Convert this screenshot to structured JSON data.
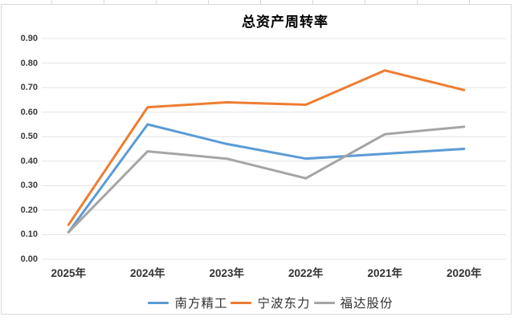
{
  "window": {
    "background": "#ffffff"
  },
  "chart_data": {
    "type": "line",
    "title": "总资产周转率",
    "categories": [
      "2025年",
      "2024年",
      "2023年",
      "2022年",
      "2021年",
      "2020年"
    ],
    "series": [
      {
        "name": "南方精工",
        "color": "#5B9BD5",
        "values": [
          0.11,
          0.55,
          0.47,
          0.41,
          0.43,
          0.45
        ]
      },
      {
        "name": "宁波东力",
        "color": "#ED7D31",
        "values": [
          0.14,
          0.62,
          0.64,
          0.63,
          0.77,
          0.69
        ]
      },
      {
        "name": "福达股份",
        "color": "#A5A5A5",
        "values": [
          0.11,
          0.44,
          0.41,
          0.33,
          0.51,
          0.54
        ]
      }
    ],
    "xlabel": "",
    "ylabel": "",
    "ylim": [
      0,
      0.9
    ],
    "ytick_step": 0.1,
    "ytick_labels": [
      "0.00",
      "0.10",
      "0.20",
      "0.30",
      "0.40",
      "0.50",
      "0.60",
      "0.70",
      "0.80",
      "0.90"
    ],
    "grid": true,
    "gridline_color": "#e3e3e3",
    "legend_position": "bottom"
  }
}
